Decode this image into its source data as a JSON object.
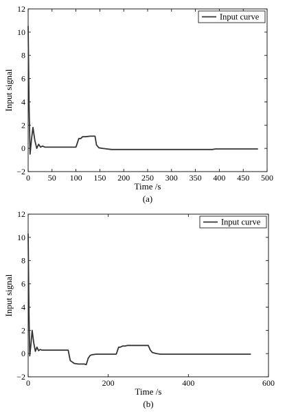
{
  "chart_data": [
    {
      "panel": "a",
      "type": "line",
      "caption": "(a)",
      "xlabel": "Time /s",
      "ylabel": "Input signal",
      "xlim": [
        0,
        500
      ],
      "ylim": [
        -2,
        12
      ],
      "xticks": [
        0,
        50,
        100,
        150,
        200,
        250,
        300,
        350,
        400,
        450,
        500
      ],
      "yticks": [
        -2,
        0,
        2,
        4,
        6,
        8,
        10,
        12
      ],
      "grid": false,
      "legend": "top-right",
      "series": [
        {
          "name": "Input curve",
          "color": "#333333",
          "x": [
            0,
            2,
            4,
            7,
            10,
            14,
            18,
            22,
            26,
            30,
            35,
            40,
            60,
            80,
            100,
            106,
            110,
            114,
            120,
            130,
            140,
            143,
            148,
            155,
            165,
            175,
            200,
            250,
            300,
            350,
            385,
            392,
            400,
            450,
            480
          ],
          "y": [
            10.5,
            3.5,
            -0.5,
            0.8,
            1.8,
            0.7,
            0.0,
            0.35,
            0.1,
            0.2,
            0.1,
            0.1,
            0.1,
            0.1,
            0.1,
            0.85,
            0.85,
            1.0,
            1.0,
            1.05,
            1.05,
            0.3,
            0.05,
            0.0,
            -0.05,
            -0.1,
            -0.1,
            -0.1,
            -0.1,
            -0.1,
            -0.1,
            -0.05,
            -0.05,
            -0.05,
            -0.05
          ]
        }
      ]
    },
    {
      "panel": "b",
      "type": "line",
      "caption": "(b)",
      "xlabel": "Time /s",
      "ylabel": "Input signal",
      "xlim": [
        0,
        600
      ],
      "ylim": [
        -2,
        12
      ],
      "xticks": [
        0,
        200,
        400,
        600
      ],
      "yticks": [
        -2,
        0,
        2,
        4,
        6,
        8,
        10,
        12
      ],
      "grid": false,
      "legend": "top-right",
      "series": [
        {
          "name": "Input curve",
          "color": "#333333",
          "x": [
            0,
            2,
            4,
            7,
            10,
            14,
            18,
            22,
            26,
            30,
            35,
            45,
            60,
            80,
            100,
            105,
            115,
            125,
            140,
            145,
            150,
            155,
            160,
            170,
            180,
            200,
            220,
            226,
            230,
            236,
            242,
            248,
            260,
            280,
            300,
            305,
            310,
            320,
            330,
            350,
            400,
            450,
            500,
            555
          ],
          "y": [
            10.3,
            3.5,
            -0.2,
            0.8,
            2.0,
            0.9,
            0.2,
            0.55,
            0.25,
            0.35,
            0.3,
            0.3,
            0.3,
            0.3,
            0.3,
            -0.6,
            -0.85,
            -0.9,
            -0.9,
            -0.95,
            -0.4,
            -0.15,
            -0.1,
            -0.05,
            -0.05,
            -0.05,
            -0.05,
            0.55,
            0.55,
            0.65,
            0.65,
            0.7,
            0.7,
            0.7,
            0.7,
            0.3,
            0.1,
            0.0,
            -0.05,
            -0.05,
            -0.05,
            -0.05,
            -0.05,
            -0.05
          ]
        }
      ]
    }
  ]
}
